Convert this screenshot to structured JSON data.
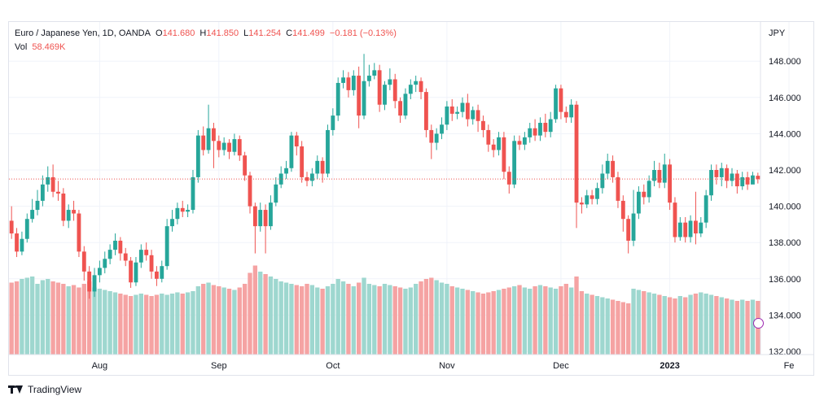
{
  "legend": {
    "symbol": "Euro / Japanese Yen, 1D, OANDA",
    "o_label": "O",
    "o_value": "141.680",
    "h_label": "H",
    "h_value": "141.850",
    "l_label": "L",
    "l_value": "141.254",
    "c_label": "C",
    "c_value": "141.499",
    "change": "−0.181 (−0.13%)",
    "vol_label": "Vol",
    "vol_value": "58.469K"
  },
  "axis_currency": "JPY",
  "footer": {
    "brand": "TradingView"
  },
  "colors": {
    "up": "#26a69a",
    "down": "#ef5350",
    "up_vol": "#9ed7cf",
    "down_vol": "#f5a3a3",
    "grid": "#f0f3fa",
    "last_price_line": "#ef5350"
  },
  "chart_data": {
    "type": "candlestick",
    "title": "Euro / Japanese Yen, 1D, OANDA",
    "y_axis": {
      "position": "right",
      "unit": "JPY",
      "ylim": [
        132,
        149
      ],
      "ticks": [
        "132.000",
        "134.000",
        "136.000",
        "138.000",
        "140.000",
        "142.000",
        "144.000",
        "146.000",
        "148.000"
      ]
    },
    "x_axis": {
      "ticks": [
        {
          "label": "Aug",
          "index": 17
        },
        {
          "label": "Sep",
          "index": 40
        },
        {
          "label": "Oct",
          "index": 62
        },
        {
          "label": "Nov",
          "index": 84
        },
        {
          "label": "Dec",
          "index": 106
        },
        {
          "label": "2023",
          "index": 127,
          "bold": true
        },
        {
          "label": "Fe",
          "index": 150
        }
      ]
    },
    "last_price": 141.499,
    "grid": true,
    "candles": [
      [
        139.2,
        138.5,
        140.0,
        138.2
      ],
      [
        138.5,
        137.5,
        138.8,
        137.2
      ],
      [
        137.5,
        138.2,
        138.6,
        137.3
      ],
      [
        138.2,
        139.3,
        139.6,
        138.0
      ],
      [
        139.3,
        139.8,
        140.4,
        139.1
      ],
      [
        139.8,
        140.3,
        140.9,
        139.5
      ],
      [
        140.3,
        141.2,
        141.7,
        140.0
      ],
      [
        141.2,
        141.6,
        142.2,
        140.8
      ],
      [
        141.6,
        140.8,
        142.3,
        140.5
      ],
      [
        140.8,
        140.7,
        141.4,
        140.3
      ],
      [
        140.7,
        139.2,
        141.0,
        138.9
      ],
      [
        139.2,
        139.8,
        140.1,
        138.8
      ],
      [
        139.8,
        139.6,
        140.3,
        139.2
      ],
      [
        139.6,
        137.5,
        139.8,
        137.2
      ],
      [
        137.5,
        136.4,
        137.8,
        135.9
      ],
      [
        136.4,
        135.3,
        136.7,
        134.9
      ],
      [
        135.3,
        136.2,
        136.6,
        135.0
      ],
      [
        136.2,
        136.6,
        137.0,
        135.8
      ],
      [
        136.6,
        137.1,
        137.5,
        136.3
      ],
      [
        137.1,
        137.6,
        137.9,
        136.8
      ],
      [
        137.6,
        138.1,
        138.5,
        137.3
      ],
      [
        138.1,
        137.4,
        138.3,
        137.0
      ],
      [
        137.4,
        137.0,
        137.7,
        136.7
      ],
      [
        137.0,
        135.8,
        137.2,
        135.5
      ],
      [
        135.8,
        136.9,
        137.2,
        135.6
      ],
      [
        136.9,
        137.6,
        137.9,
        136.6
      ],
      [
        137.6,
        137.3,
        138.0,
        137.0
      ],
      [
        137.3,
        136.4,
        137.6,
        136.0
      ],
      [
        136.4,
        136.0,
        136.7,
        135.6
      ],
      [
        136.0,
        136.7,
        137.0,
        135.8
      ],
      [
        136.7,
        138.9,
        139.3,
        136.5
      ],
      [
        138.9,
        139.3,
        139.8,
        138.6
      ],
      [
        139.3,
        139.9,
        140.2,
        139.0
      ],
      [
        139.9,
        139.7,
        140.3,
        139.4
      ],
      [
        139.7,
        139.8,
        140.1,
        139.4
      ],
      [
        139.8,
        141.6,
        142.0,
        139.6
      ],
      [
        141.6,
        143.9,
        144.2,
        141.3
      ],
      [
        143.9,
        143.1,
        144.4,
        142.8
      ],
      [
        143.1,
        144.3,
        145.6,
        142.9
      ],
      [
        144.3,
        143.6,
        144.6,
        142.1
      ],
      [
        143.6,
        143.1,
        143.9,
        142.7
      ],
      [
        143.1,
        143.5,
        143.8,
        142.8
      ],
      [
        143.5,
        143.0,
        143.7,
        142.6
      ],
      [
        143.0,
        143.7,
        144.0,
        142.8
      ],
      [
        143.7,
        142.8,
        143.9,
        142.5
      ],
      [
        142.8,
        141.7,
        143.0,
        141.4
      ],
      [
        141.7,
        140.0,
        141.9,
        139.6
      ],
      [
        140.0,
        138.9,
        140.2,
        137.4
      ],
      [
        138.9,
        139.8,
        140.2,
        138.6
      ],
      [
        139.8,
        138.9,
        140.1,
        137.4
      ],
      [
        138.9,
        140.2,
        140.6,
        138.7
      ],
      [
        140.2,
        141.2,
        141.6,
        140.0
      ],
      [
        141.2,
        141.8,
        142.2,
        141.0
      ],
      [
        141.8,
        142.1,
        142.5,
        141.5
      ],
      [
        142.1,
        143.9,
        144.1,
        141.9
      ],
      [
        143.9,
        143.3,
        144.1,
        142.8
      ],
      [
        143.3,
        141.6,
        143.6,
        141.3
      ],
      [
        141.6,
        141.4,
        141.9,
        141.1
      ],
      [
        141.4,
        141.8,
        142.1,
        141.1
      ],
      [
        141.8,
        142.5,
        142.8,
        141.5
      ],
      [
        142.5,
        141.8,
        142.7,
        141.3
      ],
      [
        141.8,
        144.2,
        144.5,
        141.6
      ],
      [
        144.2,
        145.0,
        145.4,
        143.9
      ],
      [
        145.0,
        146.8,
        147.1,
        144.7
      ],
      [
        146.8,
        147.1,
        147.5,
        146.5
      ],
      [
        147.1,
        146.4,
        147.4,
        146.0
      ],
      [
        146.4,
        147.2,
        147.5,
        146.1
      ],
      [
        147.2,
        145.0,
        147.7,
        144.3
      ],
      [
        145.0,
        146.9,
        148.4,
        144.8
      ],
      [
        146.9,
        147.2,
        147.8,
        146.6
      ],
      [
        147.2,
        147.5,
        147.9,
        147.0
      ],
      [
        147.5,
        145.6,
        147.8,
        145.2
      ],
      [
        145.6,
        146.7,
        146.9,
        145.3
      ],
      [
        146.7,
        147.0,
        147.6,
        146.4
      ],
      [
        147.0,
        145.8,
        147.3,
        145.4
      ],
      [
        145.8,
        145.0,
        146.0,
        144.6
      ],
      [
        145.0,
        146.2,
        146.5,
        144.8
      ],
      [
        146.2,
        146.7,
        147.0,
        145.9
      ],
      [
        146.7,
        146.9,
        147.2,
        146.3
      ],
      [
        146.9,
        146.3,
        147.1,
        145.9
      ],
      [
        146.3,
        144.2,
        146.5,
        143.8
      ],
      [
        144.2,
        143.5,
        144.5,
        142.6
      ],
      [
        143.5,
        144.0,
        144.3,
        143.1
      ],
      [
        144.0,
        144.5,
        144.9,
        143.7
      ],
      [
        144.5,
        145.5,
        145.8,
        144.2
      ],
      [
        145.5,
        145.1,
        145.9,
        144.7
      ],
      [
        145.1,
        145.2,
        145.5,
        144.8
      ],
      [
        145.2,
        145.7,
        146.0,
        144.9
      ],
      [
        145.7,
        144.8,
        146.2,
        144.4
      ],
      [
        144.8,
        145.3,
        145.5,
        144.5
      ],
      [
        145.3,
        144.7,
        145.6,
        144.1
      ],
      [
        144.7,
        144.2,
        145.0,
        143.8
      ],
      [
        144.2,
        143.4,
        144.5,
        143.0
      ],
      [
        143.4,
        143.1,
        143.7,
        142.7
      ],
      [
        143.1,
        143.8,
        144.1,
        142.8
      ],
      [
        143.8,
        141.9,
        144.1,
        141.5
      ],
      [
        141.9,
        141.2,
        142.2,
        140.7
      ],
      [
        141.2,
        143.6,
        143.9,
        141.0
      ],
      [
        143.6,
        143.4,
        143.9,
        143.1
      ],
      [
        143.4,
        143.8,
        144.1,
        143.1
      ],
      [
        143.8,
        144.3,
        144.6,
        143.5
      ],
      [
        144.3,
        143.9,
        144.8,
        143.6
      ],
      [
        143.9,
        144.6,
        144.9,
        143.6
      ],
      [
        144.6,
        144.1,
        145.1,
        143.8
      ],
      [
        144.1,
        144.8,
        145.2,
        143.8
      ],
      [
        144.8,
        146.5,
        146.7,
        144.6
      ],
      [
        146.5,
        145.2,
        146.7,
        144.8
      ],
      [
        145.2,
        144.9,
        145.5,
        144.6
      ],
      [
        144.9,
        145.6,
        145.9,
        144.6
      ],
      [
        145.6,
        140.2,
        145.8,
        138.8
      ],
      [
        140.2,
        140.1,
        140.5,
        139.6
      ],
      [
        140.1,
        140.6,
        140.9,
        139.9
      ],
      [
        140.6,
        140.4,
        140.9,
        140.1
      ],
      [
        140.4,
        141.0,
        141.3,
        140.1
      ],
      [
        141.0,
        141.8,
        142.3,
        140.7
      ],
      [
        141.8,
        142.5,
        142.9,
        141.5
      ],
      [
        142.5,
        141.6,
        142.8,
        141.3
      ],
      [
        141.6,
        140.3,
        141.9,
        139.9
      ],
      [
        140.3,
        139.3,
        140.6,
        138.6
      ],
      [
        139.3,
        138.1,
        139.5,
        137.4
      ],
      [
        138.1,
        139.6,
        140.9,
        137.8
      ],
      [
        139.6,
        140.8,
        141.1,
        139.3
      ],
      [
        140.8,
        140.5,
        141.2,
        140.1
      ],
      [
        140.5,
        141.4,
        141.7,
        140.2
      ],
      [
        141.4,
        142.0,
        142.5,
        141.1
      ],
      [
        142.0,
        141.3,
        142.4,
        141.0
      ],
      [
        141.3,
        142.3,
        142.9,
        141.0
      ],
      [
        142.3,
        140.2,
        142.6,
        139.8
      ],
      [
        140.2,
        138.3,
        140.5,
        138.0
      ],
      [
        138.3,
        139.1,
        139.4,
        138.1
      ],
      [
        139.1,
        138.3,
        139.4,
        138.0
      ],
      [
        138.3,
        139.2,
        139.5,
        138.0
      ],
      [
        139.2,
        138.5,
        140.8,
        137.9
      ],
      [
        138.5,
        139.1,
        139.4,
        138.3
      ],
      [
        139.1,
        140.6,
        140.9,
        138.8
      ],
      [
        140.6,
        142.0,
        142.3,
        140.3
      ],
      [
        142.0,
        141.6,
        142.3,
        141.2
      ],
      [
        141.6,
        142.1,
        142.4,
        141.1
      ],
      [
        142.1,
        141.4,
        142.3,
        141.0
      ],
      [
        141.4,
        141.8,
        142.1,
        141.1
      ],
      [
        141.8,
        141.1,
        142.0,
        140.7
      ],
      [
        141.1,
        141.6,
        141.9,
        140.9
      ],
      [
        141.6,
        141.2,
        141.9,
        140.9
      ],
      [
        141.2,
        141.7,
        141.9,
        141.3
      ],
      [
        141.68,
        141.499,
        141.85,
        141.254
      ]
    ],
    "volume": [
      59,
      60,
      62,
      63,
      64,
      58,
      61,
      62,
      60,
      59,
      58,
      56,
      57,
      55,
      58,
      60,
      55,
      54,
      53,
      52,
      51,
      50,
      49,
      48,
      49,
      50,
      49,
      48,
      49,
      50,
      49,
      50,
      51,
      50,
      51,
      52,
      56,
      58,
      59,
      57,
      56,
      55,
      54,
      53,
      55,
      58,
      67,
      73,
      68,
      66,
      64,
      62,
      60,
      59,
      58,
      57,
      56,
      58,
      57,
      55,
      54,
      56,
      58,
      62,
      60,
      58,
      56,
      59,
      63,
      58,
      57,
      56,
      58,
      57,
      56,
      55,
      54,
      55,
      58,
      60,
      62,
      63,
      61,
      59,
      58,
      56,
      55,
      54,
      53,
      52,
      51,
      50,
      51,
      52,
      53,
      54,
      55,
      56,
      57,
      55,
      54,
      56,
      57,
      56,
      55,
      54,
      56,
      58,
      55,
      64,
      52,
      50,
      49,
      48,
      47,
      46,
      45,
      44,
      43,
      42,
      54,
      53,
      52,
      51,
      50,
      49,
      48,
      47,
      46,
      48,
      47,
      49,
      50,
      51,
      50,
      49,
      48,
      47,
      46,
      45,
      44,
      45,
      44,
      45,
      44
    ]
  }
}
